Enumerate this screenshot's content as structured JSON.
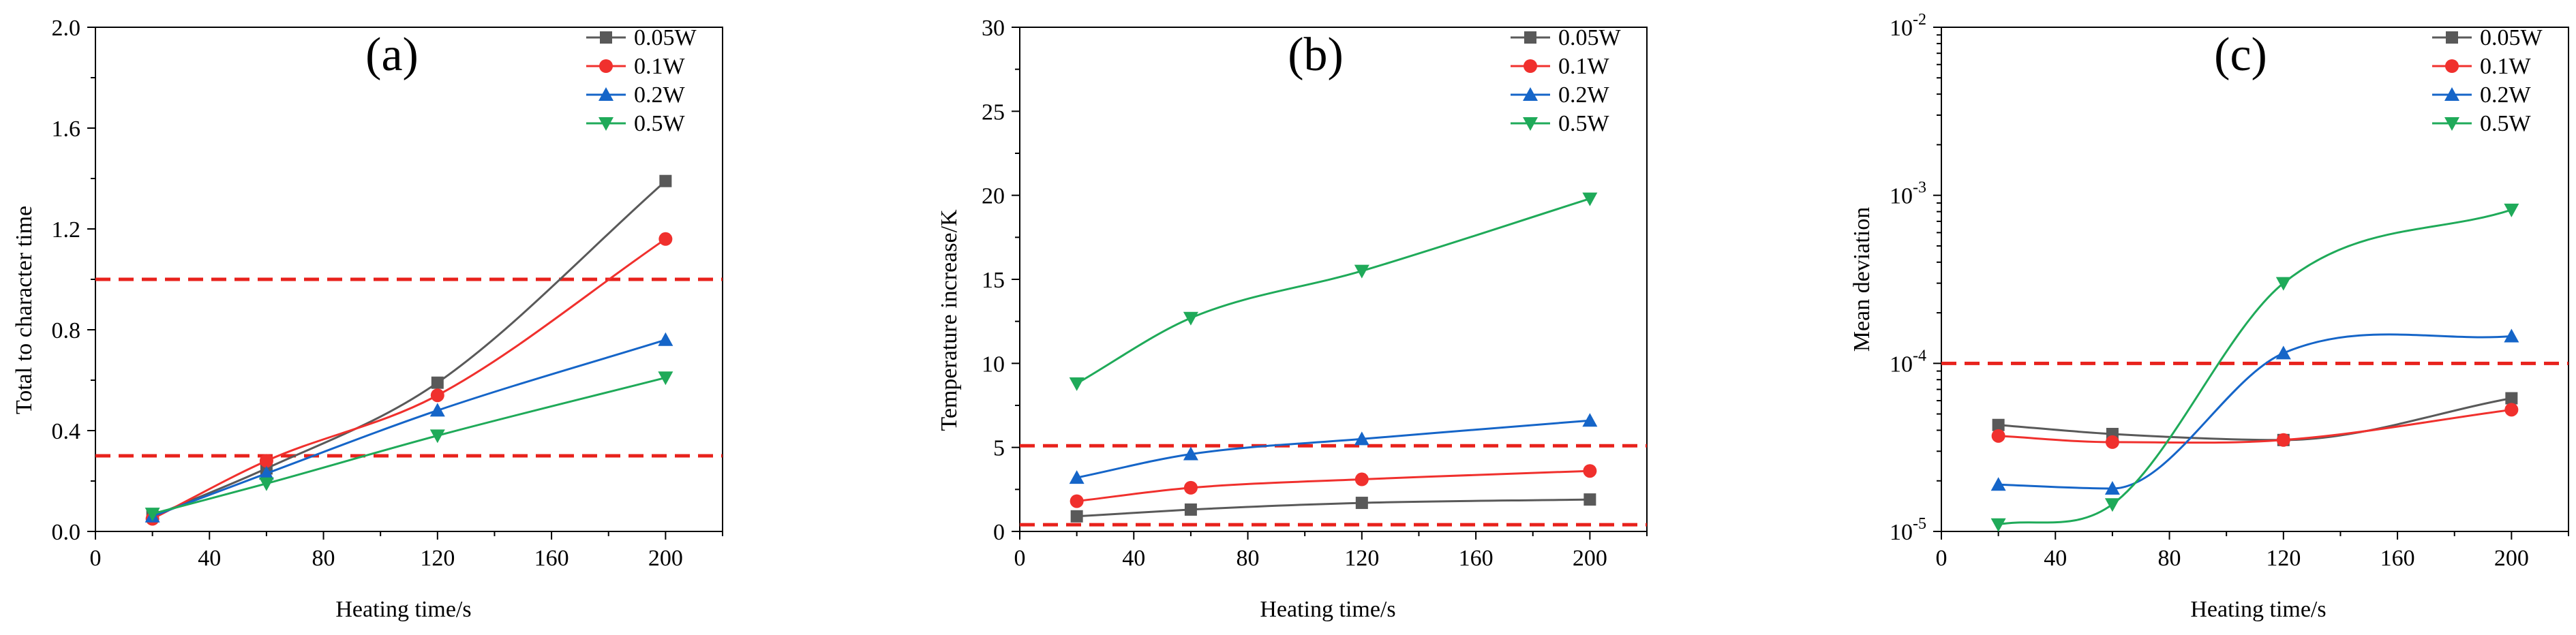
{
  "chart_data": [
    {
      "type": "line",
      "panel_label": "(a)",
      "xlabel": "Heating time/s",
      "ylabel": "Total to character time",
      "xlim": [
        0,
        220
      ],
      "ylim": [
        0,
        2.0
      ],
      "xticks": [
        "0",
        "40",
        "80",
        "120",
        "160",
        "200"
      ],
      "yticks": [
        "0.0",
        "0.4",
        "0.8",
        "1.2",
        "1.6",
        "2.0"
      ],
      "yscale": "linear",
      "legend_position": "top-right",
      "x": [
        20,
        60,
        120,
        200
      ],
      "series": [
        {
          "name": "0.05W",
          "marker": "square",
          "color": "#595959",
          "values": [
            0.06,
            0.25,
            0.59,
            1.39
          ]
        },
        {
          "name": "0.1W",
          "marker": "circle",
          "color": "#f0302d",
          "values": [
            0.05,
            0.28,
            0.54,
            1.16
          ]
        },
        {
          "name": "0.2W",
          "marker": "triangle-up",
          "color": "#1565c8",
          "values": [
            0.06,
            0.23,
            0.48,
            0.76
          ]
        },
        {
          "name": "0.5W",
          "marker": "triangle-down",
          "color": "#1faa59",
          "values": [
            0.07,
            0.19,
            0.38,
            0.61
          ]
        }
      ],
      "reference_lines": [
        1.0,
        0.3
      ]
    },
    {
      "type": "line",
      "panel_label": "(b)",
      "xlabel": "Heating time/s",
      "ylabel": "Temperature increase/K",
      "xlim": [
        0,
        220
      ],
      "ylim": [
        0,
        30
      ],
      "xticks": [
        "0",
        "40",
        "80",
        "120",
        "160",
        "200"
      ],
      "yticks": [
        "0",
        "5",
        "10",
        "15",
        "20",
        "25",
        "30"
      ],
      "yscale": "linear",
      "legend_position": "top-right",
      "x": [
        20,
        60,
        120,
        200
      ],
      "series": [
        {
          "name": "0.05W",
          "marker": "square",
          "color": "#595959",
          "values": [
            0.9,
            1.3,
            1.7,
            1.9
          ]
        },
        {
          "name": "0.1W",
          "marker": "circle",
          "color": "#f0302d",
          "values": [
            1.8,
            2.6,
            3.1,
            3.6
          ]
        },
        {
          "name": "0.2W",
          "marker": "triangle-up",
          "color": "#1565c8",
          "values": [
            3.2,
            4.6,
            5.5,
            6.6
          ]
        },
        {
          "name": "0.5W",
          "marker": "triangle-down",
          "color": "#1faa59",
          "values": [
            8.8,
            12.7,
            15.5,
            19.8
          ]
        }
      ],
      "reference_lines": [
        5.1,
        0.4
      ]
    },
    {
      "type": "line",
      "panel_label": "(c)",
      "xlabel": "Heating time/s",
      "ylabel": "Mean deviation",
      "xlim": [
        0,
        220
      ],
      "ylim": [
        1e-05,
        0.01
      ],
      "xticks": [
        "0",
        "40",
        "80",
        "120",
        "160",
        "200"
      ],
      "yticks": [
        {
          "base": "10",
          "exp": "-5"
        },
        {
          "base": "10",
          "exp": "-4"
        },
        {
          "base": "10",
          "exp": "-3"
        },
        {
          "base": "10",
          "exp": "-2"
        }
      ],
      "yscale": "log",
      "legend_position": "top-right",
      "x": [
        20,
        60,
        120,
        200
      ],
      "series": [
        {
          "name": "0.05W",
          "marker": "square",
          "color": "#595959",
          "values": [
            4.3e-05,
            3.8e-05,
            3.5e-05,
            6.2e-05
          ]
        },
        {
          "name": "0.1W",
          "marker": "circle",
          "color": "#f0302d",
          "values": [
            3.7e-05,
            3.4e-05,
            3.5e-05,
            5.3e-05
          ]
        },
        {
          "name": "0.2W",
          "marker": "triangle-up",
          "color": "#1565c8",
          "values": [
            1.9e-05,
            1.8e-05,
            0.000115,
            0.000145
          ]
        },
        {
          "name": "0.5W",
          "marker": "triangle-down",
          "color": "#1faa59",
          "values": [
            1.1e-05,
            1.45e-05,
            0.0003,
            0.00082
          ]
        }
      ],
      "reference_lines": [
        0.0001
      ]
    }
  ],
  "style": {
    "axis_color": "#000000",
    "reference_line_color": "#e8221c"
  }
}
